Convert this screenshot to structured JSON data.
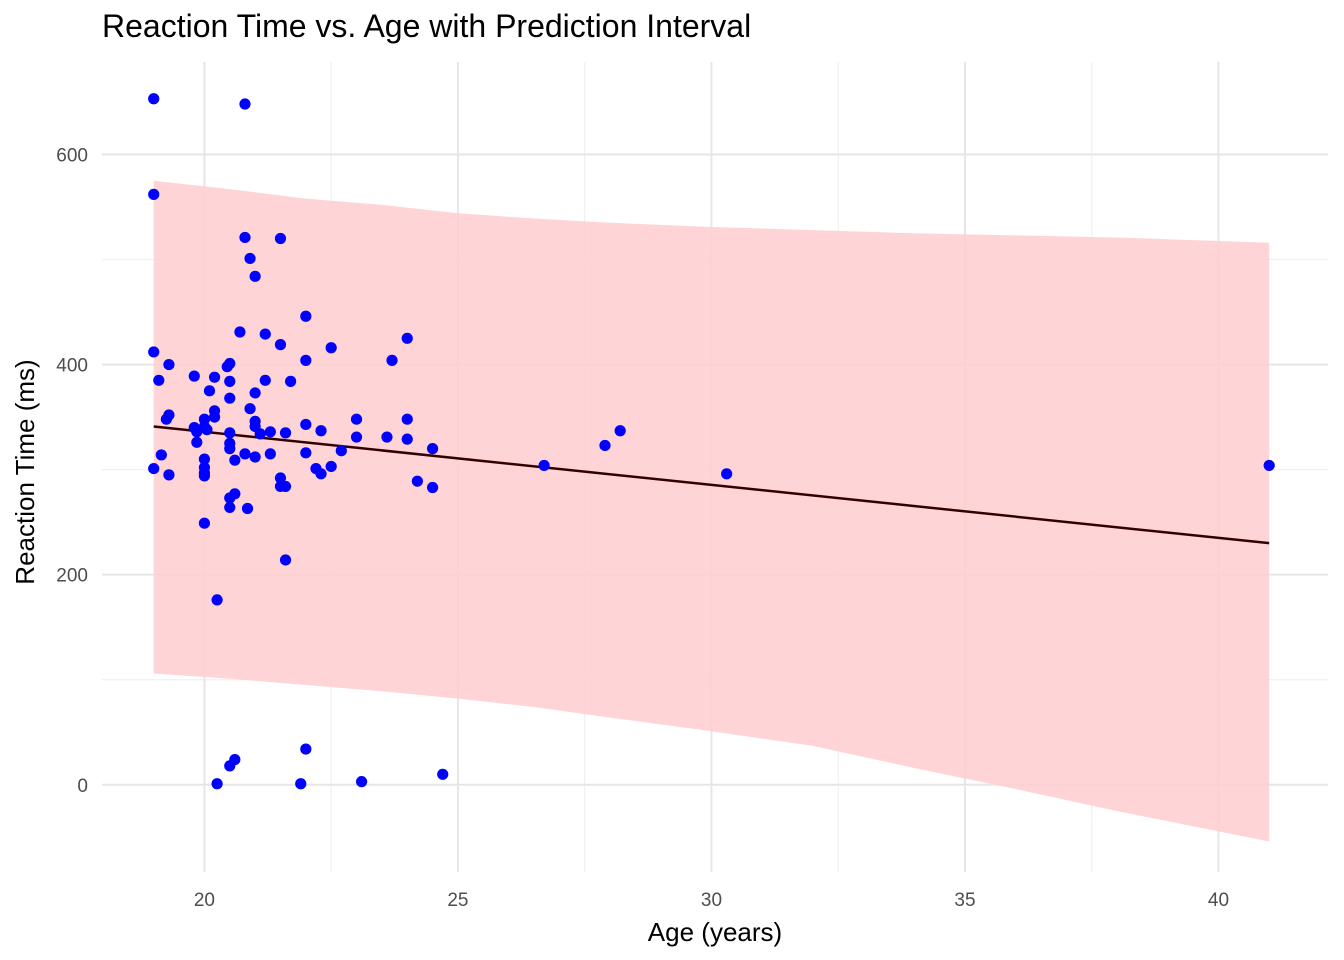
{
  "chart_data": {
    "type": "scatter",
    "title": "Reaction Time vs. Age with Prediction Interval",
    "xlabel": "Age (years)",
    "ylabel": "Reaction Time (ms)",
    "xlim": [
      17.98,
      42.16
    ],
    "ylim": [
      -83,
      688
    ],
    "x_ticks": [
      20,
      25,
      30,
      35,
      40
    ],
    "y_ticks": [
      0,
      200,
      400,
      600
    ],
    "grid": true,
    "legend": "none",
    "colors": {
      "points": "#0000FF",
      "band": "#FFCCD0",
      "line": "#330000",
      "grid_major": "#E6E6E6",
      "grid_minor": "#F0F0F0"
    },
    "regression_line": {
      "x": [
        19,
        41
      ],
      "y": [
        341,
        230
      ]
    },
    "prediction_interval": {
      "x": [
        19,
        20.5,
        22,
        23.5,
        25,
        26.5,
        28,
        30,
        32,
        34,
        36,
        38,
        41
      ],
      "lower": [
        106,
        101,
        95,
        89,
        82,
        74,
        64,
        51,
        37,
        16,
        -4,
        -25,
        -54
      ],
      "upper": [
        575,
        567,
        558,
        552,
        544,
        539,
        535,
        531,
        528,
        525,
        523,
        521,
        516
      ]
    },
    "points": [
      {
        "x": 19.0,
        "y": 653
      },
      {
        "x": 20.8,
        "y": 648
      },
      {
        "x": 19.0,
        "y": 562
      },
      {
        "x": 20.8,
        "y": 521
      },
      {
        "x": 21.5,
        "y": 520
      },
      {
        "x": 20.9,
        "y": 501
      },
      {
        "x": 21.0,
        "y": 484
      },
      {
        "x": 22.0,
        "y": 446
      },
      {
        "x": 20.7,
        "y": 431
      },
      {
        "x": 21.2,
        "y": 429
      },
      {
        "x": 24.0,
        "y": 425
      },
      {
        "x": 21.5,
        "y": 419
      },
      {
        "x": 22.5,
        "y": 416
      },
      {
        "x": 19.0,
        "y": 412
      },
      {
        "x": 22.0,
        "y": 404
      },
      {
        "x": 23.7,
        "y": 404
      },
      {
        "x": 20.5,
        "y": 401
      },
      {
        "x": 19.3,
        "y": 400
      },
      {
        "x": 20.45,
        "y": 398
      },
      {
        "x": 19.8,
        "y": 389
      },
      {
        "x": 20.2,
        "y": 388
      },
      {
        "x": 19.1,
        "y": 385
      },
      {
        "x": 20.5,
        "y": 384
      },
      {
        "x": 21.2,
        "y": 385
      },
      {
        "x": 21.7,
        "y": 384
      },
      {
        "x": 20.1,
        "y": 375
      },
      {
        "x": 21.0,
        "y": 373
      },
      {
        "x": 20.5,
        "y": 368
      },
      {
        "x": 20.9,
        "y": 358
      },
      {
        "x": 20.2,
        "y": 356
      },
      {
        "x": 19.3,
        "y": 352
      },
      {
        "x": 19.25,
        "y": 348
      },
      {
        "x": 20.0,
        "y": 348
      },
      {
        "x": 20.2,
        "y": 350
      },
      {
        "x": 23.0,
        "y": 348
      },
      {
        "x": 24.0,
        "y": 348
      },
      {
        "x": 21.0,
        "y": 346
      },
      {
        "x": 22.0,
        "y": 343
      },
      {
        "x": 19.8,
        "y": 340
      },
      {
        "x": 20.0,
        "y": 341
      },
      {
        "x": 21.0,
        "y": 341
      },
      {
        "x": 19.85,
        "y": 336
      },
      {
        "x": 20.05,
        "y": 338
      },
      {
        "x": 21.3,
        "y": 336
      },
      {
        "x": 22.3,
        "y": 337
      },
      {
        "x": 28.2,
        "y": 337
      },
      {
        "x": 20.5,
        "y": 335
      },
      {
        "x": 21.1,
        "y": 334
      },
      {
        "x": 21.6,
        "y": 335
      },
      {
        "x": 23.0,
        "y": 331
      },
      {
        "x": 23.6,
        "y": 331
      },
      {
        "x": 24.0,
        "y": 329
      },
      {
        "x": 19.85,
        "y": 326
      },
      {
        "x": 20.5,
        "y": 325
      },
      {
        "x": 27.9,
        "y": 323
      },
      {
        "x": 20.5,
        "y": 320
      },
      {
        "x": 24.5,
        "y": 320
      },
      {
        "x": 22.7,
        "y": 318
      },
      {
        "x": 19.15,
        "y": 314
      },
      {
        "x": 20.8,
        "y": 315
      },
      {
        "x": 21.3,
        "y": 315
      },
      {
        "x": 22.0,
        "y": 316
      },
      {
        "x": 21.0,
        "y": 312
      },
      {
        "x": 20.0,
        "y": 310
      },
      {
        "x": 20.6,
        "y": 309
      },
      {
        "x": 26.7,
        "y": 304
      },
      {
        "x": 41.0,
        "y": 304
      },
      {
        "x": 19.0,
        "y": 301
      },
      {
        "x": 20.0,
        "y": 302
      },
      {
        "x": 22.2,
        "y": 301
      },
      {
        "x": 22.5,
        "y": 303
      },
      {
        "x": 20.0,
        "y": 297
      },
      {
        "x": 30.3,
        "y": 296
      },
      {
        "x": 19.3,
        "y": 295
      },
      {
        "x": 20.0,
        "y": 294
      },
      {
        "x": 22.3,
        "y": 296
      },
      {
        "x": 21.5,
        "y": 292
      },
      {
        "x": 24.2,
        "y": 289
      },
      {
        "x": 21.5,
        "y": 284
      },
      {
        "x": 21.6,
        "y": 284
      },
      {
        "x": 24.5,
        "y": 283
      },
      {
        "x": 20.6,
        "y": 277
      },
      {
        "x": 20.5,
        "y": 273
      },
      {
        "x": 20.5,
        "y": 264
      },
      {
        "x": 20.85,
        "y": 263
      },
      {
        "x": 20.0,
        "y": 249
      },
      {
        "x": 21.6,
        "y": 214
      },
      {
        "x": 20.25,
        "y": 176
      },
      {
        "x": 22.0,
        "y": 34
      },
      {
        "x": 20.6,
        "y": 24
      },
      {
        "x": 20.5,
        "y": 18
      },
      {
        "x": 24.7,
        "y": 10
      },
      {
        "x": 23.1,
        "y": 3
      },
      {
        "x": 20.25,
        "y": 1
      },
      {
        "x": 21.9,
        "y": 1
      }
    ]
  }
}
